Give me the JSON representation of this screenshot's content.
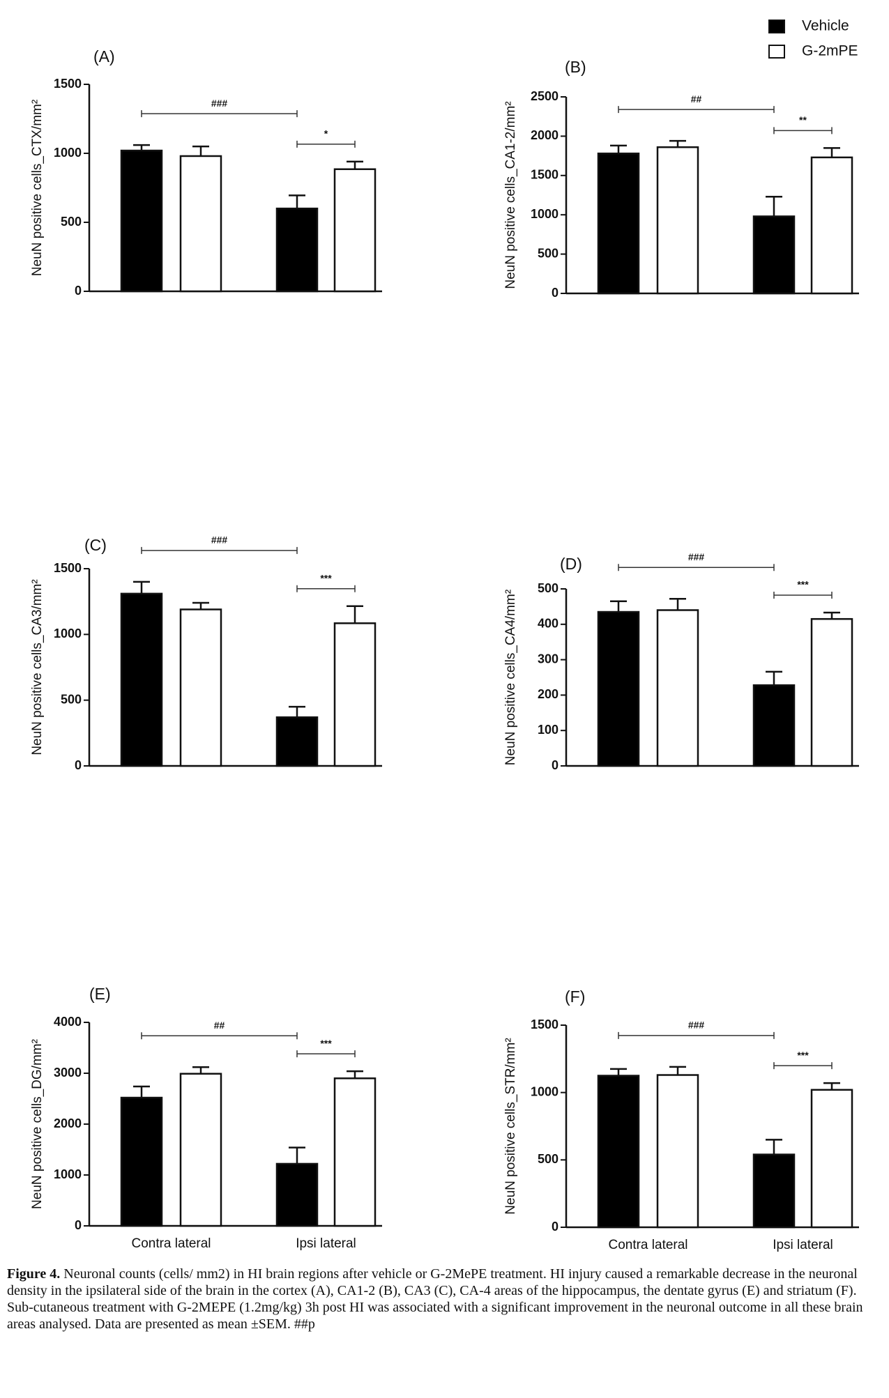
{
  "chart_data": [
    {
      "type": "bar",
      "title": "(A)",
      "ylabel": "NeuN positive cells_CTX/mm²",
      "categories": [
        null,
        null
      ],
      "series": [
        {
          "name": "Vehicle",
          "color": "#000000",
          "values": [
            1020,
            600
          ],
          "errors": [
            40,
            95
          ]
        },
        {
          "name": "G-2mPE",
          "color": "#ffffff",
          "values": [
            980,
            885
          ],
          "errors": [
            70,
            55
          ]
        }
      ],
      "ylim": [
        0,
        1500
      ],
      "yticks": [
        0,
        500,
        1000,
        1500
      ],
      "annotations": [
        "###",
        "*"
      ]
    },
    {
      "type": "bar",
      "title": "(B)",
      "ylabel": "NeuN positive cells_CA1-2/mm²",
      "categories": [
        null,
        null
      ],
      "series": [
        {
          "color": "#000000",
          "values": [
            1780,
            980
          ],
          "errors": [
            100,
            250
          ]
        },
        {
          "color": "#ffffff",
          "values": [
            1860,
            1730
          ],
          "errors": [
            80,
            120
          ]
        }
      ],
      "ylim": [
        0,
        2500
      ],
      "yticks": [
        0,
        500,
        1000,
        1500,
        2000,
        2500
      ],
      "annotations": [
        "##",
        "**"
      ]
    },
    {
      "type": "bar",
      "title": "(C)",
      "ylabel": "NeuN positive cells_CA3/mm²",
      "categories": [
        null,
        null
      ],
      "series": [
        {
          "color": "#000000",
          "values": [
            1310,
            370
          ],
          "errors": [
            90,
            80
          ]
        },
        {
          "color": "#ffffff",
          "values": [
            1190,
            1085
          ],
          "errors": [
            50,
            130
          ]
        }
      ],
      "ylim": [
        0,
        1500
      ],
      "yticks": [
        0,
        500,
        1000,
        1500
      ],
      "annotations": [
        "###",
        "***"
      ]
    },
    {
      "type": "bar",
      "title": "(D)",
      "ylabel": "NeuN positive cells_CA4/mm²",
      "categories": [
        null,
        null
      ],
      "series": [
        {
          "color": "#000000",
          "values": [
            435,
            228
          ],
          "errors": [
            30,
            38
          ]
        },
        {
          "color": "#ffffff",
          "values": [
            440,
            415
          ],
          "errors": [
            32,
            18
          ]
        }
      ],
      "ylim": [
        0,
        500
      ],
      "yticks": [
        0,
        100,
        200,
        300,
        400,
        500
      ],
      "annotations": [
        "###",
        "***"
      ]
    },
    {
      "type": "bar",
      "title": "(E)",
      "ylabel": "NeuN positive cells_DG/mm²",
      "categories": [
        "Contra lateral",
        "Ipsi lateral"
      ],
      "series": [
        {
          "color": "#000000",
          "values": [
            2520,
            1220
          ],
          "errors": [
            220,
            320
          ]
        },
        {
          "color": "#ffffff",
          "values": [
            2990,
            2900
          ],
          "errors": [
            130,
            140
          ]
        }
      ],
      "ylim": [
        0,
        4000
      ],
      "yticks": [
        0,
        1000,
        2000,
        3000,
        4000
      ],
      "annotations": [
        "##",
        "***"
      ]
    },
    {
      "type": "bar",
      "title": "(F)",
      "ylabel": "NeuN positive cells_STR/mm²",
      "categories": [
        "Contra lateral",
        "Ipsi lateral"
      ],
      "series": [
        {
          "color": "#000000",
          "values": [
            1125,
            540
          ],
          "errors": [
            50,
            110
          ]
        },
        {
          "color": "#ffffff",
          "values": [
            1130,
            1020
          ],
          "errors": [
            60,
            50
          ]
        }
      ],
      "ylim": [
        0,
        1500
      ],
      "yticks": [
        0,
        500,
        1000,
        1500
      ],
      "annotations": [
        "###",
        "***"
      ]
    }
  ],
  "caption": {
    "label": "Figure 4.",
    "text": "Neuronal counts (cells/ mm2) in HI brain regions after vehicle or G-2MePE treatment. HI injury caused a remarkable decrease in the neuronal density in the ipsilateral side of the brain in the cortex (A), CA1-2 (B), CA3 (C), CA-4 areas of the hippocampus, the dentate gyrus (E) and striatum (F). Sub-cutaneous treatment with G-2MEPE (1.2mg/kg) 3h post HI was associated with a significant improvement in the neuronal outcome in all these brain areas analysed. Data are presented as mean ±SEM. ##p"
  }
}
